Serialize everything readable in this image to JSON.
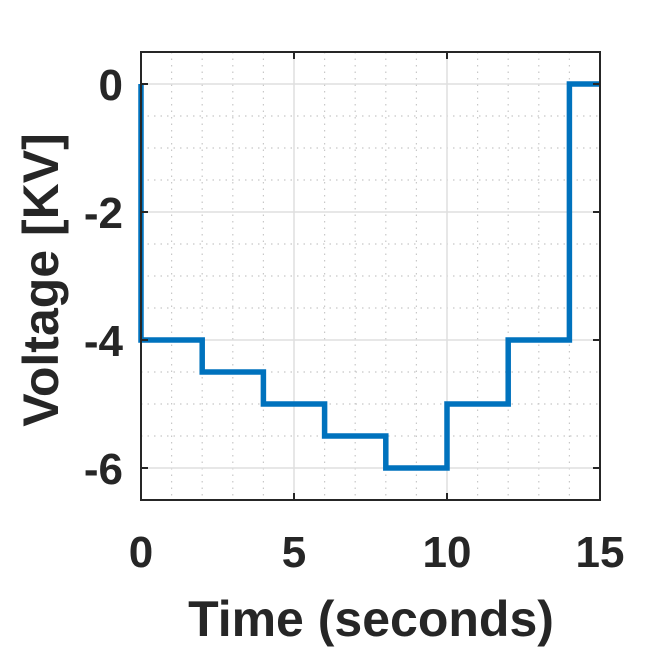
{
  "chart_data": {
    "type": "line",
    "title": "",
    "xlabel": "Time (seconds)",
    "ylabel": "Voltage [KV]",
    "xlim": [
      0,
      15
    ],
    "ylim": [
      -6.5,
      0.5
    ],
    "x_ticks": [
      0,
      5,
      10,
      15
    ],
    "x_tick_labels": [
      "0",
      "5",
      "10",
      "15"
    ],
    "y_ticks": [
      0,
      -2,
      -4,
      -6
    ],
    "y_tick_labels": [
      "0",
      "-2",
      "-4",
      "-6"
    ],
    "grid": true,
    "minor_grid": true,
    "box": true,
    "step": true,
    "series": [
      {
        "color": "#0072BD",
        "x": [
          0,
          0,
          2,
          2,
          4,
          4,
          6,
          6,
          8,
          8,
          10,
          10,
          12,
          12,
          14,
          14,
          15
        ],
        "y": [
          0,
          -4,
          -4,
          -4.5,
          -4.5,
          -5,
          -5,
          -5.5,
          -5.5,
          -6,
          -6,
          -5,
          -5,
          -4,
          -4,
          0,
          0
        ]
      }
    ],
    "colors": {
      "axis": "#262626",
      "major_grid": "#dfdfdf",
      "minor_grid": "#c8c8c8",
      "line": "#0072BD"
    }
  }
}
